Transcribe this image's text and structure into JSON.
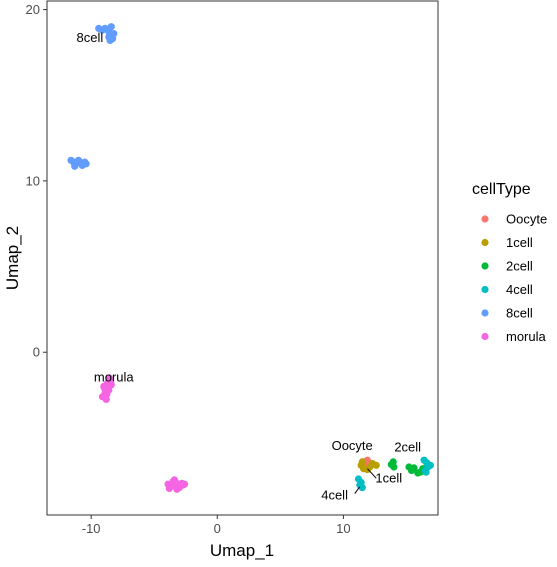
{
  "chart_data": {
    "type": "scatter",
    "xlabel": "Umap_1",
    "ylabel": "Umap_2",
    "xlim": [
      -13.5,
      17.5
    ],
    "ylim": [
      -9.5,
      20.5
    ],
    "x_ticks": [
      -10,
      0,
      10
    ],
    "y_ticks": [
      0,
      10,
      20
    ],
    "x_tick_labels": [
      "-10",
      "0",
      "10"
    ],
    "y_tick_labels": [
      "0",
      "10",
      "20"
    ],
    "grid": false,
    "legend": {
      "title": "cellType",
      "placement": "right"
    },
    "series": [
      {
        "name": "Oocyte",
        "color": "#F8766D",
        "x": [
          11.6,
          11.9,
          11.7,
          12.0,
          11.8
        ],
        "y": [
          -6.4,
          -6.3,
          -6.6,
          -6.5,
          -6.45
        ]
      },
      {
        "name": "1cell",
        "color": "#B79F00",
        "x": [
          11.4,
          11.6,
          12.1,
          12.3,
          12.6,
          11.9,
          11.5
        ],
        "y": [
          -6.6,
          -6.8,
          -6.7,
          -6.5,
          -6.6,
          -6.85,
          -6.4
        ]
      },
      {
        "name": "2cell",
        "color": "#00BA38",
        "x": [
          13.8,
          13.95,
          14.0,
          15.2,
          15.4,
          15.6,
          15.9,
          16.1,
          16.3
        ],
        "y": [
          -6.55,
          -6.4,
          -6.7,
          -6.7,
          -6.9,
          -6.75,
          -7.05,
          -7.0,
          -6.8
        ]
      },
      {
        "name": "4cell",
        "color": "#00BFC4",
        "x": [
          11.2,
          11.4,
          11.5,
          11.3,
          16.4,
          16.6,
          16.7,
          16.5,
          16.9,
          16.55
        ],
        "y": [
          -7.4,
          -7.6,
          -7.9,
          -7.75,
          -6.3,
          -6.45,
          -6.7,
          -6.9,
          -6.6,
          -7.0
        ]
      },
      {
        "name": "8cell",
        "color": "#619CFF",
        "x": [
          -9.4,
          -9.1,
          -8.9,
          -8.6,
          -8.4,
          -8.3,
          -8.5,
          -8.2,
          -8.6,
          -8.4,
          -11.6,
          -11.4,
          -11.2,
          -11.0,
          -10.7,
          -10.5,
          -10.4,
          -11.3
        ],
        "y": [
          18.9,
          18.8,
          18.9,
          18.7,
          18.5,
          18.3,
          18.2,
          18.6,
          18.4,
          19.0,
          11.2,
          11.1,
          11.0,
          11.2,
          10.9,
          11.1,
          11.0,
          10.85
        ]
      },
      {
        "name": "morula",
        "color": "#F564E3",
        "x": [
          -9.0,
          -8.7,
          -8.5,
          -8.9,
          -9.1,
          -8.6,
          -8.8,
          -8.4,
          -8.95,
          -8.55,
          -8.75,
          -3.9,
          -3.6,
          -3.3,
          -3.0,
          -2.7,
          -3.5,
          -3.1,
          -2.8,
          -3.8,
          -3.2,
          -2.6,
          -3.4
        ],
        "y": [
          -2.0,
          -1.8,
          -1.6,
          -2.4,
          -2.6,
          -2.2,
          -2.75,
          -1.9,
          -2.1,
          -1.5,
          -2.45,
          -7.7,
          -7.8,
          -7.6,
          -7.9,
          -7.75,
          -7.55,
          -7.85,
          -7.65,
          -7.95,
          -8.0,
          -7.7,
          -7.45
        ]
      }
    ],
    "annotations": [
      {
        "text": "8cell",
        "x": -10.1,
        "y": 18.1
      },
      {
        "text": "morula",
        "x": -8.2,
        "y": -1.7
      },
      {
        "text": "Oocyte",
        "x": 10.7,
        "y": -5.7
      },
      {
        "text": "2cell",
        "x": 15.1,
        "y": -5.8
      },
      {
        "text": "1cell",
        "x": 13.6,
        "y": -7.6
      },
      {
        "text": "4cell",
        "x": 9.3,
        "y": -8.6
      }
    ]
  }
}
